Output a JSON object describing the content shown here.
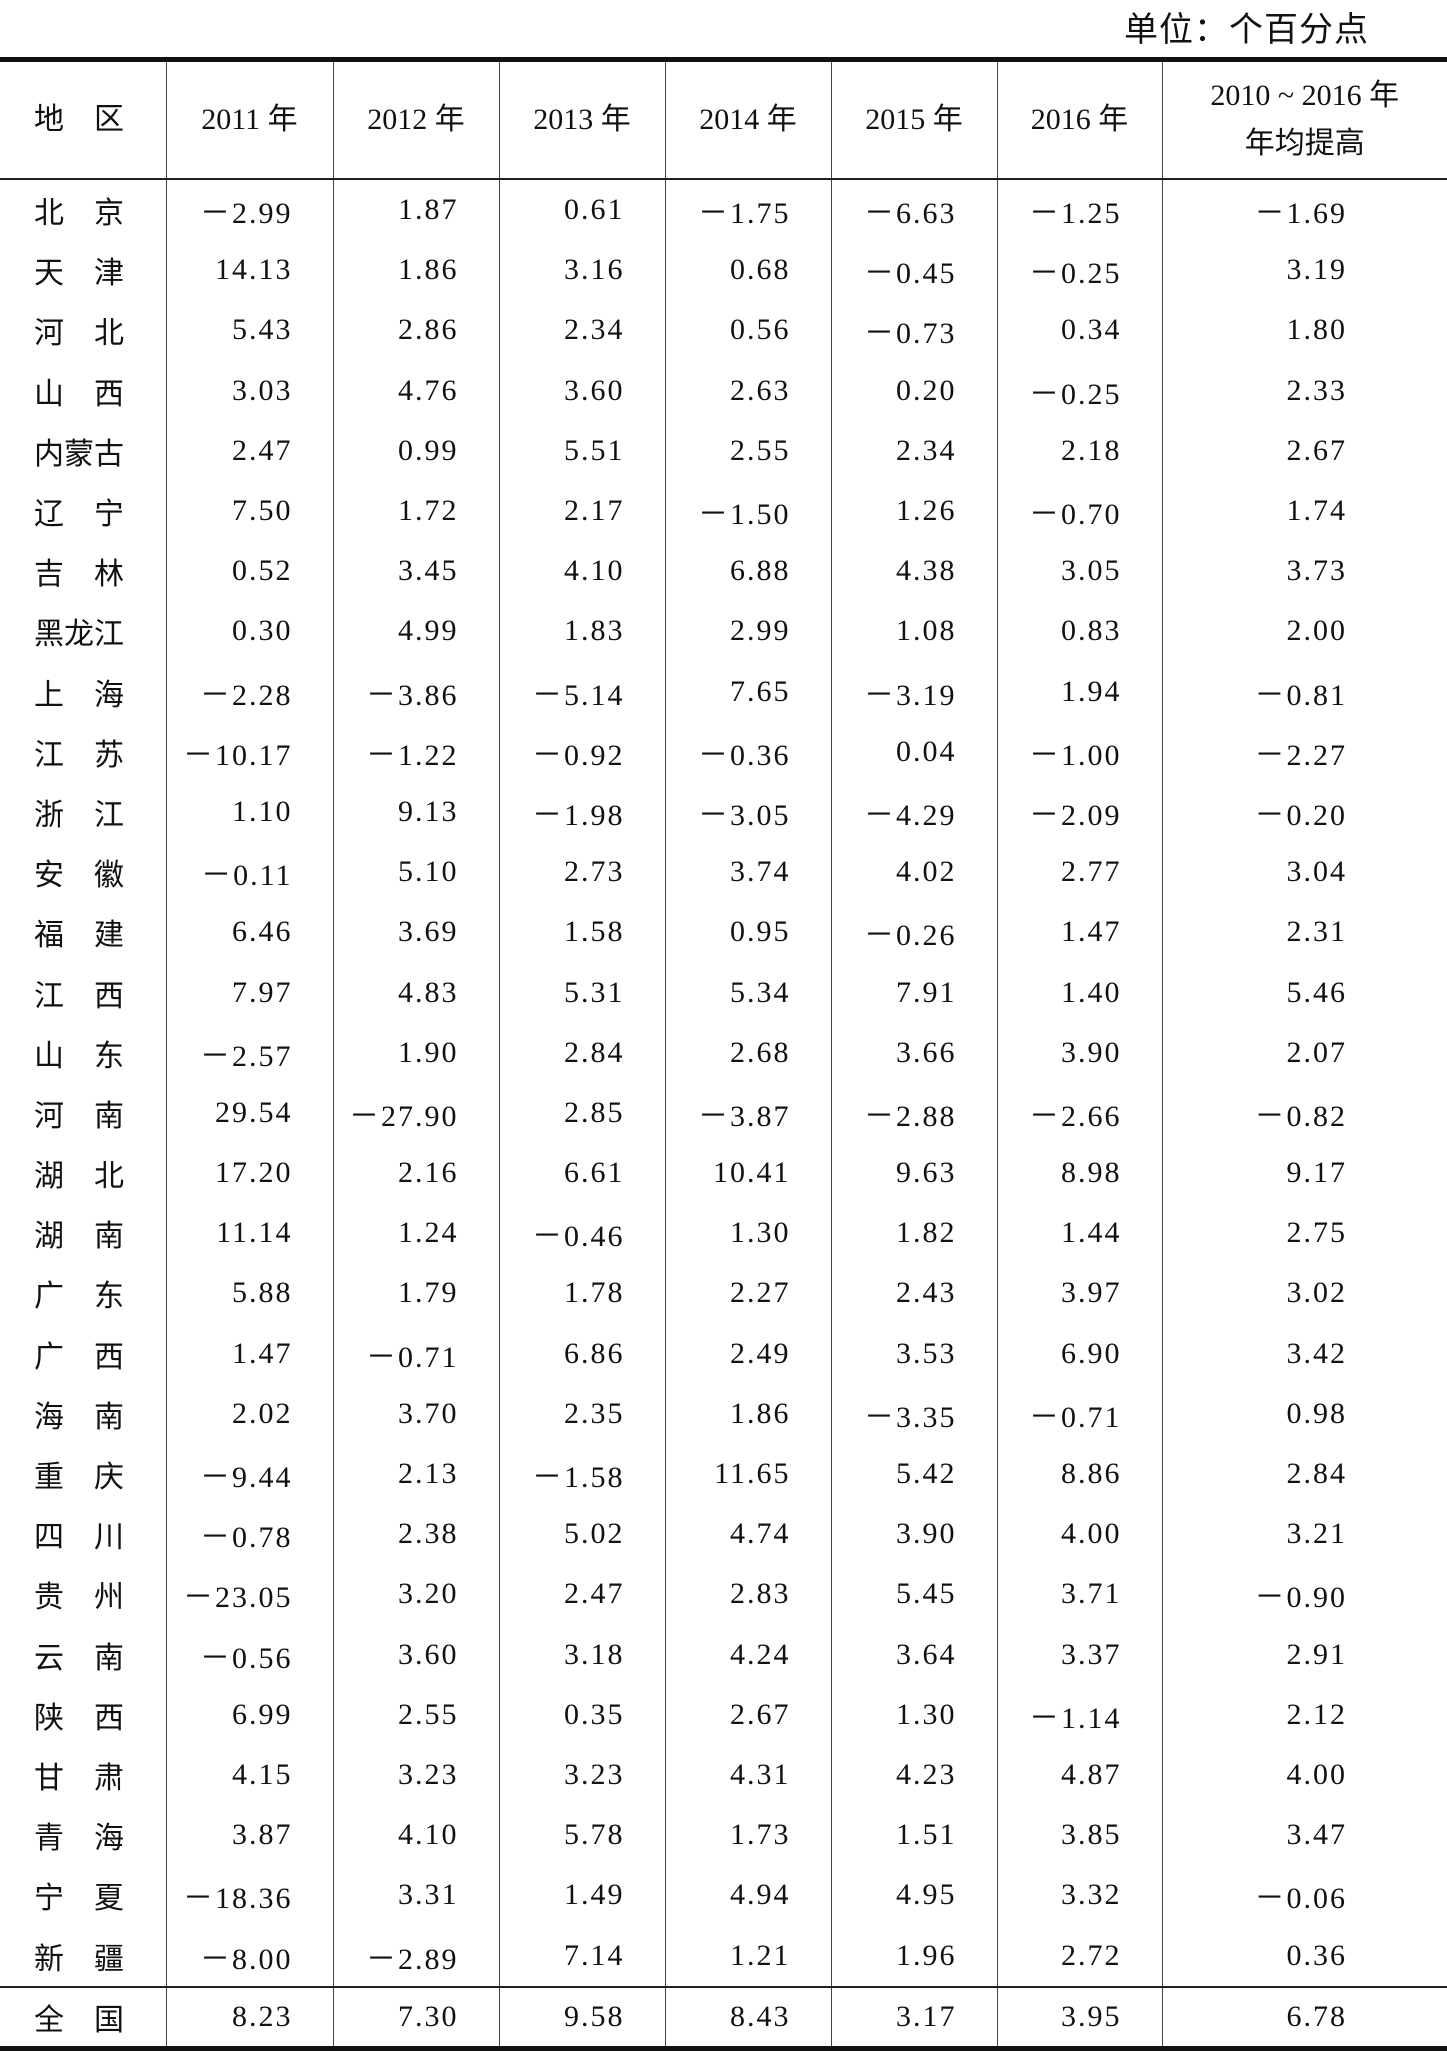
{
  "unit_label": "单位：个百分点",
  "headers": [
    "地　区",
    "2011 年",
    "2012 年",
    "2013 年",
    "2014 年",
    "2015 年",
    "2016 年",
    "2010 ~ 2016 年",
    "年均提高"
  ],
  "rows": [
    [
      "北　京",
      "－2.99",
      "1.87",
      "0.61",
      "－1.75",
      "－6.63",
      "－1.25",
      "－1.69"
    ],
    [
      "天　津",
      "14.13",
      "1.86",
      "3.16",
      "0.68",
      "－0.45",
      "－0.25",
      "3.19"
    ],
    [
      "河　北",
      "5.43",
      "2.86",
      "2.34",
      "0.56",
      "－0.73",
      "0.34",
      "1.80"
    ],
    [
      "山　西",
      "3.03",
      "4.76",
      "3.60",
      "2.63",
      "0.20",
      "－0.25",
      "2.33"
    ],
    [
      "内蒙古",
      "2.47",
      "0.99",
      "5.51",
      "2.55",
      "2.34",
      "2.18",
      "2.67"
    ],
    [
      "辽　宁",
      "7.50",
      "1.72",
      "2.17",
      "－1.50",
      "1.26",
      "－0.70",
      "1.74"
    ],
    [
      "吉　林",
      "0.52",
      "3.45",
      "4.10",
      "6.88",
      "4.38",
      "3.05",
      "3.73"
    ],
    [
      "黑龙江",
      "0.30",
      "4.99",
      "1.83",
      "2.99",
      "1.08",
      "0.83",
      "2.00"
    ],
    [
      "上　海",
      "－2.28",
      "－3.86",
      "－5.14",
      "7.65",
      "－3.19",
      "1.94",
      "－0.81"
    ],
    [
      "江　苏",
      "－10.17",
      "－1.22",
      "－0.92",
      "－0.36",
      "0.04",
      "－1.00",
      "－2.27"
    ],
    [
      "浙　江",
      "1.10",
      "9.13",
      "－1.98",
      "－3.05",
      "－4.29",
      "－2.09",
      "－0.20"
    ],
    [
      "安　徽",
      "－0.11",
      "5.10",
      "2.73",
      "3.74",
      "4.02",
      "2.77",
      "3.04"
    ],
    [
      "福　建",
      "6.46",
      "3.69",
      "1.58",
      "0.95",
      "－0.26",
      "1.47",
      "2.31"
    ],
    [
      "江　西",
      "7.97",
      "4.83",
      "5.31",
      "5.34",
      "7.91",
      "1.40",
      "5.46"
    ],
    [
      "山　东",
      "－2.57",
      "1.90",
      "2.84",
      "2.68",
      "3.66",
      "3.90",
      "2.07"
    ],
    [
      "河　南",
      "29.54",
      "－27.90",
      "2.85",
      "－3.87",
      "－2.88",
      "－2.66",
      "－0.82"
    ],
    [
      "湖　北",
      "17.20",
      "2.16",
      "6.61",
      "10.41",
      "9.63",
      "8.98",
      "9.17"
    ],
    [
      "湖　南",
      "11.14",
      "1.24",
      "－0.46",
      "1.30",
      "1.82",
      "1.44",
      "2.75"
    ],
    [
      "广　东",
      "5.88",
      "1.79",
      "1.78",
      "2.27",
      "2.43",
      "3.97",
      "3.02"
    ],
    [
      "广　西",
      "1.47",
      "－0.71",
      "6.86",
      "2.49",
      "3.53",
      "6.90",
      "3.42"
    ],
    [
      "海　南",
      "2.02",
      "3.70",
      "2.35",
      "1.86",
      "－3.35",
      "－0.71",
      "0.98"
    ],
    [
      "重　庆",
      "－9.44",
      "2.13",
      "－1.58",
      "11.65",
      "5.42",
      "8.86",
      "2.84"
    ],
    [
      "四　川",
      "－0.78",
      "2.38",
      "5.02",
      "4.74",
      "3.90",
      "4.00",
      "3.21"
    ],
    [
      "贵　州",
      "－23.05",
      "3.20",
      "2.47",
      "2.83",
      "5.45",
      "3.71",
      "－0.90"
    ],
    [
      "云　南",
      "－0.56",
      "3.60",
      "3.18",
      "4.24",
      "3.64",
      "3.37",
      "2.91"
    ],
    [
      "陕　西",
      "6.99",
      "2.55",
      "0.35",
      "2.67",
      "1.30",
      "－1.14",
      "2.12"
    ],
    [
      "甘　肃",
      "4.15",
      "3.23",
      "3.23",
      "4.31",
      "4.23",
      "4.87",
      "4.00"
    ],
    [
      "青　海",
      "3.87",
      "4.10",
      "5.78",
      "1.73",
      "1.51",
      "3.85",
      "3.47"
    ],
    [
      "宁　夏",
      "－18.36",
      "3.31",
      "1.49",
      "4.94",
      "4.95",
      "3.32",
      "－0.06"
    ],
    [
      "新　疆",
      "－8.00",
      "－2.89",
      "7.14",
      "1.21",
      "1.96",
      "2.72",
      "0.36"
    ]
  ],
  "total": [
    "全　国",
    "8.23",
    "7.30",
    "9.58",
    "8.43",
    "3.17",
    "3.95",
    "6.78"
  ]
}
